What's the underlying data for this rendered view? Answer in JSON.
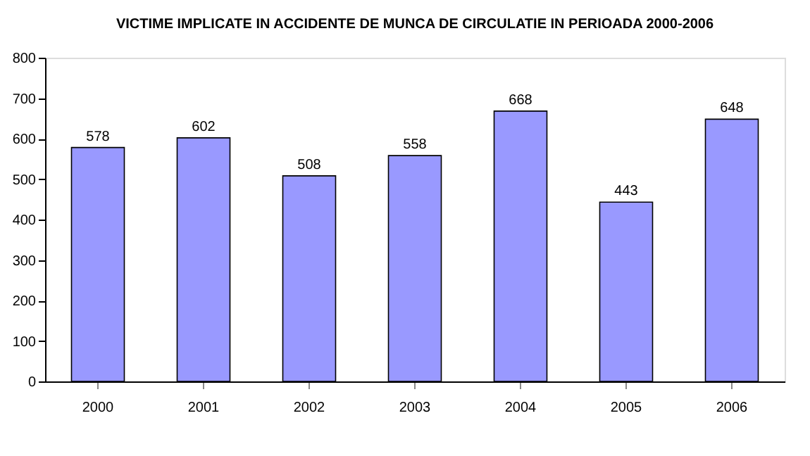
{
  "chart_data": {
    "type": "bar",
    "title": "VICTIME IMPLICATE IN ACCIDENTE DE MUNCA DE CIRCULATIE IN PERIOADA 2000-2006",
    "categories": [
      "2000",
      "2001",
      "2002",
      "2003",
      "2004",
      "2005",
      "2006"
    ],
    "values": [
      578,
      602,
      508,
      558,
      668,
      443,
      648
    ],
    "color": "#9999ff",
    "ylim": [
      0,
      800
    ],
    "yticks": [
      0,
      100,
      200,
      300,
      400,
      500,
      600,
      700,
      800
    ],
    "data_labels": true,
    "grid": false
  }
}
